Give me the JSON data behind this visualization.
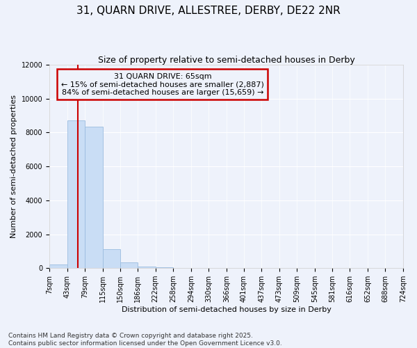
{
  "title_line1": "31, QUARN DRIVE, ALLESTREE, DERBY, DE22 2NR",
  "title_line2": "Size of property relative to semi-detached houses in Derby",
  "xlabel": "Distribution of semi-detached houses by size in Derby",
  "ylabel": "Number of semi-detached properties",
  "footnote_line1": "Contains HM Land Registry data © Crown copyright and database right 2025.",
  "footnote_line2": "Contains public sector information licensed under the Open Government Licence v3.0.",
  "property_size": 65,
  "annotation_title": "31 QUARN DRIVE: 65sqm",
  "annotation_line1": "← 15% of semi-detached houses are smaller (2,887)",
  "annotation_line2": "84% of semi-detached houses are larger (15,659) →",
  "bin_edges": [
    7,
    43,
    79,
    115,
    150,
    186,
    222,
    258,
    294,
    330,
    366,
    401,
    437,
    473,
    509,
    545,
    581,
    616,
    652,
    688,
    724
  ],
  "bar_heights": [
    200,
    8700,
    8350,
    1100,
    320,
    100,
    50,
    0,
    0,
    0,
    0,
    0,
    0,
    0,
    0,
    0,
    0,
    0,
    0,
    0
  ],
  "bar_color": "#c9ddf5",
  "bar_edge_color": "#9bbce0",
  "redline_color": "#cc0000",
  "annotation_box_edgecolor": "#cc0000",
  "background_color": "#eef2fb",
  "plot_bg_color": "#eef2fb",
  "grid_color": "#ffffff",
  "ylim": [
    0,
    12000
  ],
  "yticks": [
    0,
    2000,
    4000,
    6000,
    8000,
    10000,
    12000
  ],
  "tick_labels": [
    "7sqm",
    "43sqm",
    "79sqm",
    "115sqm",
    "150sqm",
    "186sqm",
    "222sqm",
    "258sqm",
    "294sqm",
    "330sqm",
    "366sqm",
    "401sqm",
    "437sqm",
    "473sqm",
    "509sqm",
    "545sqm",
    "581sqm",
    "616sqm",
    "652sqm",
    "688sqm",
    "724sqm"
  ],
  "title_fontsize": 11,
  "subtitle_fontsize": 9,
  "ylabel_fontsize": 8,
  "xlabel_fontsize": 8,
  "tick_fontsize": 7,
  "footnote_fontsize": 6.5,
  "annotation_fontsize": 8
}
